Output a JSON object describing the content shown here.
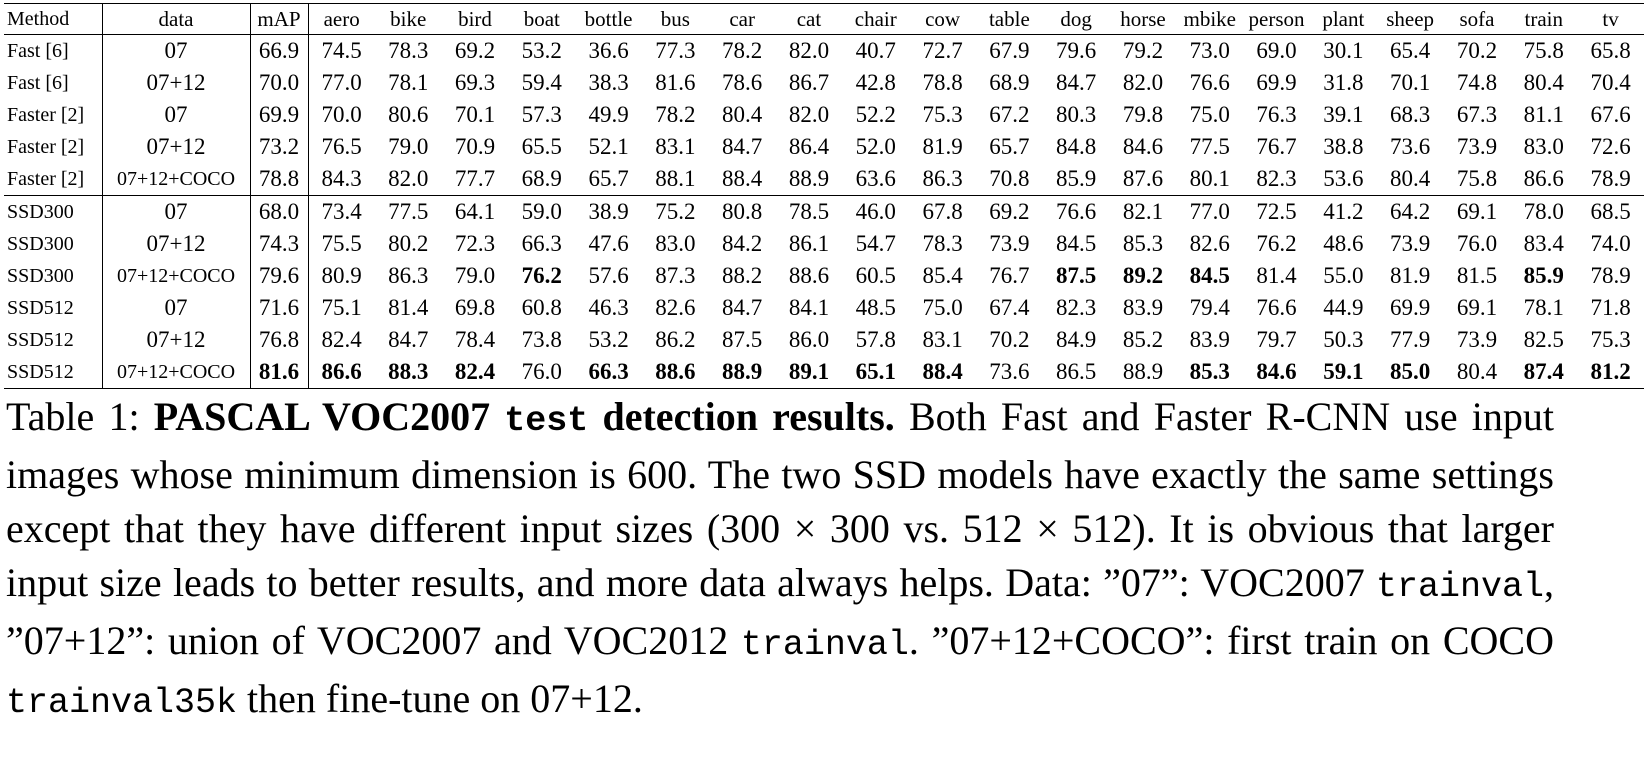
{
  "table": {
    "headers": [
      "Method",
      "data",
      "mAP",
      "aero",
      "bike",
      "bird",
      "boat",
      "bottle",
      "bus",
      "car",
      "cat",
      "chair",
      "cow",
      "table",
      "dog",
      "horse",
      "mbike",
      "person",
      "plant",
      "sheep",
      "sofa",
      "train",
      "tv"
    ],
    "rows": [
      {
        "method": "Fast [6]",
        "data": "07",
        "values": [
          "66.9",
          "74.5",
          "78.3",
          "69.2",
          "53.2",
          "36.6",
          "77.3",
          "78.2",
          "82.0",
          "40.7",
          "72.7",
          "67.9",
          "79.6",
          "79.2",
          "73.0",
          "69.0",
          "30.1",
          "65.4",
          "70.2",
          "75.8",
          "65.8"
        ],
        "bold": []
      },
      {
        "method": "Fast [6]",
        "data": "07+12",
        "values": [
          "70.0",
          "77.0",
          "78.1",
          "69.3",
          "59.4",
          "38.3",
          "81.6",
          "78.6",
          "86.7",
          "42.8",
          "78.8",
          "68.9",
          "84.7",
          "82.0",
          "76.6",
          "69.9",
          "31.8",
          "70.1",
          "74.8",
          "80.4",
          "70.4"
        ],
        "bold": []
      },
      {
        "method": "Faster [2]",
        "data": "07",
        "values": [
          "69.9",
          "70.0",
          "80.6",
          "70.1",
          "57.3",
          "49.9",
          "78.2",
          "80.4",
          "82.0",
          "52.2",
          "75.3",
          "67.2",
          "80.3",
          "79.8",
          "75.0",
          "76.3",
          "39.1",
          "68.3",
          "67.3",
          "81.1",
          "67.6"
        ],
        "bold": []
      },
      {
        "method": "Faster [2]",
        "data": "07+12",
        "values": [
          "73.2",
          "76.5",
          "79.0",
          "70.9",
          "65.5",
          "52.1",
          "83.1",
          "84.7",
          "86.4",
          "52.0",
          "81.9",
          "65.7",
          "84.8",
          "84.6",
          "77.5",
          "76.7",
          "38.8",
          "73.6",
          "73.9",
          "83.0",
          "72.6"
        ],
        "bold": []
      },
      {
        "method": "Faster [2]",
        "data": "07+12+COCO",
        "values": [
          "78.8",
          "84.3",
          "82.0",
          "77.7",
          "68.9",
          "65.7",
          "88.1",
          "88.4",
          "88.9",
          "63.6",
          "86.3",
          "70.8",
          "85.9",
          "87.6",
          "80.1",
          "82.3",
          "53.6",
          "80.4",
          "75.8",
          "86.6",
          "78.9"
        ],
        "bold": []
      },
      {
        "method": "SSD300",
        "data": "07",
        "values": [
          "68.0",
          "73.4",
          "77.5",
          "64.1",
          "59.0",
          "38.9",
          "75.2",
          "80.8",
          "78.5",
          "46.0",
          "67.8",
          "69.2",
          "76.6",
          "82.1",
          "77.0",
          "72.5",
          "41.2",
          "64.2",
          "69.1",
          "78.0",
          "68.5"
        ],
        "bold": []
      },
      {
        "method": "SSD300",
        "data": "07+12",
        "values": [
          "74.3",
          "75.5",
          "80.2",
          "72.3",
          "66.3",
          "47.6",
          "83.0",
          "84.2",
          "86.1",
          "54.7",
          "78.3",
          "73.9",
          "84.5",
          "85.3",
          "82.6",
          "76.2",
          "48.6",
          "73.9",
          "76.0",
          "83.4",
          "74.0"
        ],
        "bold": []
      },
      {
        "method": "SSD300",
        "data": "07+12+COCO",
        "values": [
          "79.6",
          "80.9",
          "86.3",
          "79.0",
          "76.2",
          "57.6",
          "87.3",
          "88.2",
          "88.6",
          "60.5",
          "85.4",
          "76.7",
          "87.5",
          "89.2",
          "84.5",
          "81.4",
          "55.0",
          "81.9",
          "81.5",
          "85.9",
          "78.9"
        ],
        "bold": [
          4,
          12,
          13,
          14,
          19
        ]
      },
      {
        "method": "SSD512",
        "data": "07",
        "values": [
          "71.6",
          "75.1",
          "81.4",
          "69.8",
          "60.8",
          "46.3",
          "82.6",
          "84.7",
          "84.1",
          "48.5",
          "75.0",
          "67.4",
          "82.3",
          "83.9",
          "79.4",
          "76.6",
          "44.9",
          "69.9",
          "69.1",
          "78.1",
          "71.8"
        ],
        "bold": []
      },
      {
        "method": "SSD512",
        "data": "07+12",
        "values": [
          "76.8",
          "82.4",
          "84.7",
          "78.4",
          "73.8",
          "53.2",
          "86.2",
          "87.5",
          "86.0",
          "57.8",
          "83.1",
          "70.2",
          "84.9",
          "85.2",
          "83.9",
          "79.7",
          "50.3",
          "77.9",
          "73.9",
          "82.5",
          "75.3"
        ],
        "bold": []
      },
      {
        "method": "SSD512",
        "data": "07+12+COCO",
        "values": [
          "81.6",
          "86.6",
          "88.3",
          "82.4",
          "76.0",
          "66.3",
          "88.6",
          "88.9",
          "89.1",
          "65.1",
          "88.4",
          "73.6",
          "86.5",
          "88.9",
          "85.3",
          "84.6",
          "59.1",
          "85.0",
          "80.4",
          "87.4",
          "81.2"
        ],
        "bold": [
          0,
          1,
          2,
          3,
          5,
          6,
          7,
          8,
          9,
          10,
          14,
          15,
          16,
          17,
          19,
          20
        ]
      }
    ]
  },
  "caption": {
    "prefix": "Table 1: ",
    "bold_start": "PASCAL VOC2007 ",
    "bold_mono": "test",
    "bold_end": " detection results.",
    "text1": " Both Fast and Faster R-CNN use input images whose minimum dimension is 600. The two SSD models have exactly the same settings except that they have different input sizes (300 × 300 vs. 512 × 512). It is obvious that larger input size leads to better results, and more data always helps. Data: ”07”: VOC2007 ",
    "mono1": "trainval",
    "text2": ", ”07+12”: union of VOC2007 and VOC2012 ",
    "mono2": "trainval",
    "text3": ". ”07+12+COCO”: first train on COCO ",
    "mono3": "trainval35k",
    "text4": " then fine-tune on 07+12."
  }
}
